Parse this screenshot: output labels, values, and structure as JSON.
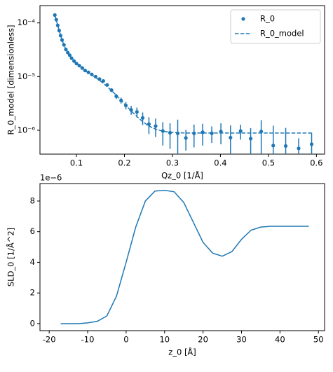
{
  "chart_data": [
    {
      "type": "scatter",
      "xlabel": "Qz_0 [1/Å]",
      "ylabel": "R_0_model [dimensionless]",
      "log_y": true,
      "legend": "upper right",
      "xlim": [
        0.024,
        0.617
      ],
      "ylim": [
        3.6e-07,
        0.00021
      ],
      "xticks": [
        0.1,
        0.2,
        0.3,
        0.4,
        0.5,
        0.6
      ],
      "yticks": [
        {
          "value": 1e-06,
          "label": "10⁻⁶"
        },
        {
          "value": 1e-05,
          "label": "10⁻⁵"
        },
        {
          "value": 0.0001,
          "label": "10⁻⁴"
        }
      ],
      "x": [
        0.055,
        0.058,
        0.061,
        0.064,
        0.067,
        0.07,
        0.074,
        0.078,
        0.082,
        0.086,
        0.09,
        0.095,
        0.1,
        0.106,
        0.112,
        0.118,
        0.125,
        0.132,
        0.14,
        0.148,
        0.156,
        0.164,
        0.173,
        0.183,
        0.193,
        0.203,
        0.214,
        0.226,
        0.238,
        0.251,
        0.265,
        0.28,
        0.295,
        0.311,
        0.328,
        0.345,
        0.363,
        0.382,
        0.401,
        0.421,
        0.442,
        0.463,
        0.485,
        0.51,
        0.536,
        0.563,
        0.59
      ],
      "series": [
        {
          "name": "R_0",
          "color": "#1f77b4",
          "style": "points",
          "values": [
            0.00014,
            0.000115,
            9e-05,
            7.2e-05,
            5.8e-05,
            4.8e-05,
            3.9e-05,
            3.2e-05,
            2.8e-05,
            2.5e-05,
            2.2e-05,
            1.95e-05,
            1.75e-05,
            1.6e-05,
            1.45e-05,
            1.3e-05,
            1.2e-05,
            1.1e-05,
            1e-05,
            9e-06,
            8.3e-06,
            7e-06,
            5.6e-06,
            4.3e-06,
            3.6e-06,
            2.9e-06,
            2.4e-06,
            2.2e-06,
            1.7e-06,
            1.3e-06,
            1.2e-06,
            9.7e-07,
            9e-07,
            8.8e-07,
            7.2e-07,
            8.8e-07,
            9.2e-07,
            8.8e-07,
            9.5e-07,
            7.3e-07,
            9.7e-07,
            7e-07,
            9.5e-07,
            5.2e-07,
            5.1e-07,
            4.6e-07,
            5.5e-07
          ],
          "errors": [
            6e-06,
            5e-06,
            4e-06,
            3e-06,
            2.5e-06,
            2e-06,
            1.6e-06,
            1.3e-06,
            1.1e-06,
            1e-06,
            9e-07,
            8e-07,
            7e-07,
            6.5e-07,
            6e-07,
            5.5e-07,
            5e-07,
            5e-07,
            4.5e-07,
            4.5e-07,
            4.5e-07,
            4.5e-07,
            4.5e-07,
            4.5e-07,
            4.5e-07,
            4.5e-07,
            4.5e-07,
            4.5e-07,
            4.5e-07,
            4.5e-07,
            4.5e-07,
            4.5e-07,
            4.5e-07,
            7e-07,
            3e-07,
            4e-07,
            4e-07,
            3e-07,
            4e-07,
            5e-07,
            3e-07,
            4e-07,
            6e-07,
            7e-07,
            6e-07,
            2.5e-07,
            3.5e-07
          ]
        },
        {
          "name": "R_0_model",
          "color": "#1f77b4",
          "style": "dashed",
          "values": [
            0.00014,
            0.000113,
            9e-05,
            7.3e-05,
            5.9e-05,
            4.8e-05,
            3.9e-05,
            3.2e-05,
            2.8e-05,
            2.45e-05,
            2.2e-05,
            1.95e-05,
            1.75e-05,
            1.58e-05,
            1.43e-05,
            1.3e-05,
            1.18e-05,
            1.07e-05,
            9.6e-06,
            8.5e-06,
            7.5e-06,
            6.5e-06,
            5.5e-06,
            4.5e-06,
            3.6e-06,
            2.9e-06,
            2.3e-06,
            1.8e-06,
            1.45e-06,
            1.2e-06,
            1.05e-06,
            9.6e-07,
            9.2e-07,
            9e-07,
            8.9e-07,
            8.9e-07,
            8.9e-07,
            8.9e-07,
            8.9e-07,
            8.9e-07,
            8.9e-07,
            8.9e-07,
            8.9e-07,
            8.9e-07,
            8.9e-07,
            8.9e-07,
            8.9e-07
          ]
        }
      ]
    },
    {
      "type": "line",
      "xlabel": "z_0 [Å]",
      "ylabel": "SLD_0 [1/Å^2]",
      "offset_text": "1e−6",
      "xlim": [
        -22.4,
        51.6
      ],
      "ylim": [
        -0.46,
        9.14
      ],
      "xticks": [
        -20,
        -10,
        0,
        10,
        20,
        30,
        40,
        50
      ],
      "yticks": [
        0,
        2,
        4,
        6,
        8
      ],
      "x": [
        -17,
        -12.5,
        -10,
        -7.5,
        -5,
        -2.5,
        0,
        2.5,
        5,
        7.5,
        10,
        12.5,
        15,
        17.5,
        20,
        22.5,
        25,
        27.5,
        30,
        32.5,
        35,
        37.5,
        40,
        45,
        47.5
      ],
      "series": [
        {
          "name": "SLD_0",
          "color": "#1f77b4",
          "values": [
            0,
            0,
            0.05,
            0.15,
            0.5,
            1.8,
            4.0,
            6.3,
            8.0,
            8.65,
            8.7,
            8.6,
            7.9,
            6.6,
            5.3,
            4.6,
            4.4,
            4.7,
            5.5,
            6.1,
            6.3,
            6.35,
            6.35,
            6.35,
            6.35
          ]
        }
      ]
    }
  ]
}
